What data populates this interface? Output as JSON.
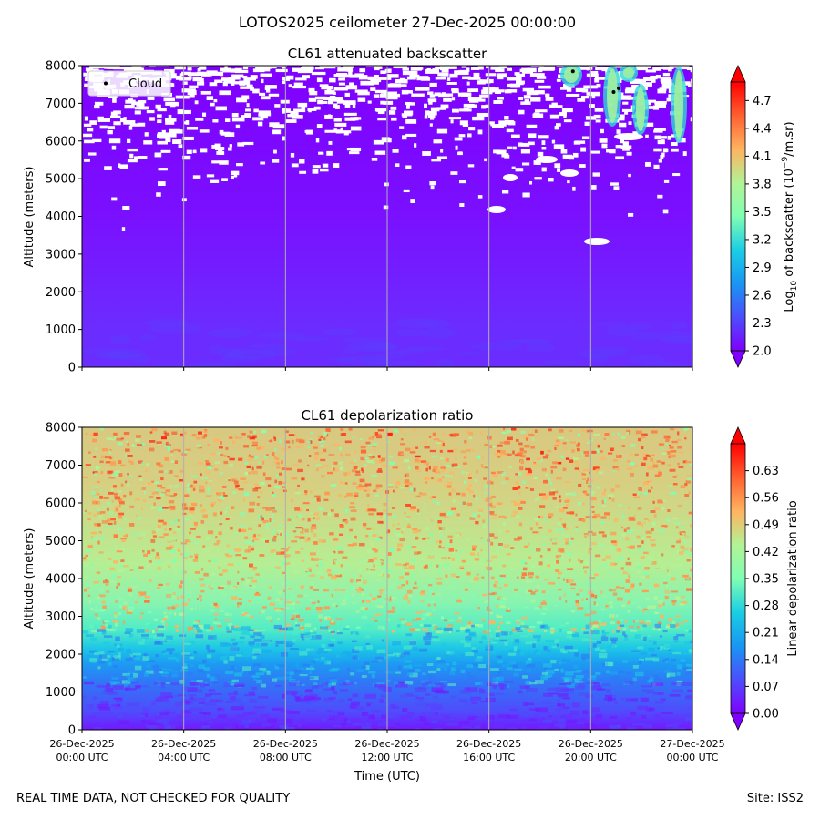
{
  "suptitle": "LOTOS2025 ceilometer 27-Dec-2025 00:00:00",
  "footer_left": "REAL TIME DATA, NOT CHECKED FOR QUALITY",
  "footer_right": "Site: ISS2",
  "xlabel": "Time (UTC)",
  "x_ticks": [
    {
      "l1": "26-Dec-2025",
      "l2": "00:00 UTC",
      "hour": 0
    },
    {
      "l1": "26-Dec-2025",
      "l2": "04:00 UTC",
      "hour": 4
    },
    {
      "l1": "26-Dec-2025",
      "l2": "08:00 UTC",
      "hour": 8
    },
    {
      "l1": "26-Dec-2025",
      "l2": "12:00 UTC",
      "hour": 12
    },
    {
      "l1": "26-Dec-2025",
      "l2": "16:00 UTC",
      "hour": 16
    },
    {
      "l1": "26-Dec-2025",
      "l2": "20:00 UTC",
      "hour": 20
    },
    {
      "l1": "27-Dec-2025",
      "l2": "00:00 UTC",
      "hour": 24
    }
  ],
  "chart_data": [
    {
      "type": "heatmap",
      "title": "CL61 attenuated backscatter",
      "xlabel": "",
      "ylabel": "Altitude (meters)",
      "xlim": [
        0,
        24
      ],
      "ylim": [
        0,
        8000
      ],
      "y_ticks": [
        0,
        1000,
        2000,
        3000,
        4000,
        5000,
        6000,
        7000,
        8000
      ],
      "colorbar_label_prefix": "Log",
      "colorbar_label_sub": "10",
      "colorbar_label_mid": " of backscatter (10",
      "colorbar_label_sup": "−9",
      "colorbar_label_suffix": "/m.sr)",
      "colorbar_range": [
        2.0,
        4.9
      ],
      "colorbar_ticks": [
        "2.0",
        "2.3",
        "2.6",
        "2.9",
        "3.2",
        "3.5",
        "3.8",
        "4.1",
        "4.4",
        "4.7"
      ],
      "legend": {
        "label": "Cloud",
        "location": "upper-left"
      },
      "cloud_points": [
        {
          "hour": 19.3,
          "alt": 7850
        },
        {
          "hour": 20.9,
          "alt": 7300
        },
        {
          "hour": 21.1,
          "alt": 7400
        }
      ]
    },
    {
      "type": "heatmap",
      "title": "CL61 depolarization ratio",
      "xlabel": "Time (UTC)",
      "ylabel": "Altitude (meters)",
      "xlim": [
        0,
        24
      ],
      "ylim": [
        0,
        8000
      ],
      "y_ticks": [
        0,
        1000,
        2000,
        3000,
        4000,
        5000,
        6000,
        7000,
        8000
      ],
      "colorbar_label": "Linear depolarization ratio",
      "colorbar_range": [
        0.0,
        0.7
      ],
      "colorbar_ticks": [
        "0.00",
        "0.07",
        "0.14",
        "0.21",
        "0.28",
        "0.35",
        "0.42",
        "0.49",
        "0.56",
        "0.63"
      ]
    }
  ]
}
